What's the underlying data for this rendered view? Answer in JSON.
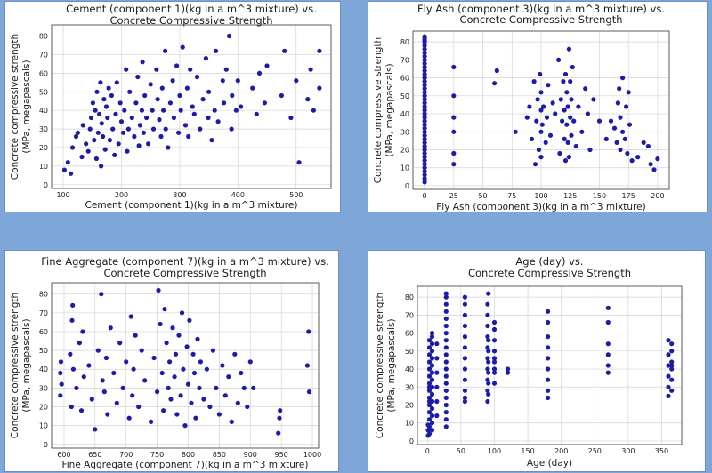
{
  "chart_data": [
    {
      "type": "scatter",
      "title_lines": [
        "Cement (component 1)(kg in a m^3 mixture) vs.",
        "Concrete Compressive Strength"
      ],
      "xlabel": "Cement (component 1)(kg in a m^3 mixture)",
      "ylabel_lines": [
        "Concrete compressive strength",
        "(MPa, megapascals)"
      ],
      "xlim": [
        80,
        560
      ],
      "ylim": [
        -2,
        86
      ],
      "xticks": [
        100,
        200,
        300,
        400,
        500
      ],
      "yticks": [
        0,
        10,
        20,
        30,
        40,
        50,
        60,
        70,
        80
      ],
      "grid": true,
      "x": [
        102,
        108,
        113,
        116,
        122,
        125,
        132,
        134,
        139,
        143,
        146,
        148,
        151,
        153,
        155,
        157,
        158,
        160,
        162,
        164,
        165,
        166,
        168,
        170,
        172,
        174,
        176,
        178,
        180,
        183,
        185,
        188,
        190,
        192,
        195,
        198,
        200,
        203,
        205,
        208,
        210,
        212,
        214,
        218,
        222,
        225,
        228,
        230,
        232,
        235,
        236,
        238,
        240,
        243,
        246,
        250,
        253,
        255,
        260,
        262,
        265,
        268,
        270,
        272,
        275,
        276,
        280,
        284,
        288,
        290,
        295,
        298,
        300,
        302,
        305,
        310,
        313,
        315,
        318,
        322,
        325,
        330,
        335,
        340,
        345,
        349,
        350,
        355,
        360,
        362,
        366,
        374,
        376,
        380,
        385,
        389,
        390,
        397,
        400,
        405,
        425,
        432,
        437,
        446,
        450,
        475,
        480,
        491,
        500,
        505,
        520,
        525,
        530,
        540,
        540
      ],
      "y": [
        8,
        12,
        6,
        20,
        26,
        28,
        15,
        32,
        22,
        18,
        30,
        36,
        44,
        24,
        40,
        14,
        50,
        28,
        38,
        55,
        10,
        33,
        26,
        46,
        19,
        42,
        36,
        52,
        24,
        48,
        30,
        16,
        38,
        55,
        22,
        44,
        34,
        28,
        40,
        62,
        18,
        30,
        50,
        36,
        26,
        44,
        58,
        21,
        32,
        40,
        66,
        28,
        48,
        36,
        22,
        54,
        40,
        30,
        62,
        46,
        35,
        26,
        52,
        40,
        72,
        30,
        20,
        44,
        56,
        36,
        64,
        28,
        48,
        40,
        74,
        32,
        52,
        26,
        62,
        42,
        38,
        58,
        30,
        46,
        68,
        36,
        50,
        24,
        40,
        72,
        34,
        56,
        44,
        62,
        80,
        30,
        48,
        40,
        56,
        42,
        52,
        38,
        60,
        44,
        64,
        48,
        72,
        36,
        56,
        12,
        46,
        62,
        40,
        72,
        52
      ]
    },
    {
      "type": "scatter",
      "title_lines": [
        "Fly Ash (component 3)(kg in a m^3 mixture) vs.",
        "Concrete Compressive Strength"
      ],
      "xlabel": "Fly Ash (component 3)(kg in a m^3 mixture)",
      "ylabel_lines": [
        "Concrete compressive strength",
        "(MPa, megapascals)"
      ],
      "xlim": [
        -10,
        210
      ],
      "ylim": [
        -2,
        86
      ],
      "xticks": [
        0,
        25,
        50,
        75,
        100,
        125,
        150,
        175,
        200
      ],
      "yticks": [
        0,
        10,
        20,
        30,
        40,
        50,
        60,
        70,
        80
      ],
      "grid": true,
      "x": [
        0,
        0,
        0,
        0,
        0,
        0,
        0,
        0,
        0,
        0,
        0,
        0,
        0,
        0,
        0,
        0,
        0,
        0,
        0,
        0,
        0,
        0,
        0,
        0,
        0,
        0,
        0,
        0,
        0,
        0,
        0,
        0,
        0,
        0,
        0,
        0,
        0,
        0,
        0,
        0,
        0,
        0,
        0,
        25,
        25,
        25,
        25,
        25,
        25,
        60,
        62,
        78,
        88,
        90,
        92,
        94,
        95,
        96,
        97,
        98,
        99,
        100,
        100,
        100,
        100,
        101,
        102,
        104,
        105,
        106,
        108,
        110,
        112,
        115,
        116,
        117,
        118,
        119,
        120,
        120,
        121,
        121,
        122,
        122,
        123,
        123,
        124,
        124,
        125,
        125,
        126,
        126,
        127,
        128,
        130,
        132,
        135,
        138,
        140,
        142,
        145,
        150,
        156,
        160,
        163,
        165,
        166,
        167,
        168,
        168,
        170,
        170,
        172,
        173,
        174,
        175,
        176,
        178,
        183,
        188,
        192,
        194,
        197,
        200
      ],
      "y": [
        2,
        4,
        6,
        8,
        10,
        12,
        14,
        16,
        18,
        20,
        22,
        24,
        26,
        28,
        30,
        32,
        34,
        36,
        38,
        40,
        42,
        44,
        46,
        48,
        50,
        52,
        54,
        56,
        58,
        60,
        62,
        64,
        66,
        68,
        70,
        72,
        74,
        76,
        78,
        80,
        81,
        82,
        83,
        12,
        18,
        30,
        38,
        50,
        66,
        57,
        64,
        30,
        38,
        44,
        26,
        58,
        12,
        36,
        48,
        20,
        62,
        30,
        42,
        52,
        16,
        34,
        44,
        24,
        38,
        56,
        28,
        46,
        40,
        70,
        18,
        48,
        36,
        58,
        26,
        42,
        62,
        14,
        34,
        52,
        24,
        44,
        76,
        16,
        38,
        58,
        28,
        48,
        66,
        36,
        22,
        44,
        30,
        54,
        40,
        20,
        48,
        36,
        26,
        36,
        32,
        24,
        46,
        54,
        20,
        38,
        30,
        60,
        26,
        44,
        18,
        52,
        34,
        14,
        16,
        24,
        22,
        12,
        9,
        15
      ]
    },
    {
      "type": "scatter",
      "title_lines": [
        "Fine Aggregate (component 7)(kg in a m^3 mixture) vs.",
        "Concrete Compressive Strength"
      ],
      "xlabel": "Fine Aggregate (component 7)(kg in a m^3 mixture)",
      "ylabel_lines": [
        "Concrete compressive strength",
        "(MPa, megapascals)"
      ],
      "xlim": [
        580,
        1010
      ],
      "ylim": [
        -2,
        86
      ],
      "xticks": [
        600,
        650,
        700,
        750,
        800,
        850,
        900,
        950,
        1000
      ],
      "yticks": [
        0,
        10,
        20,
        30,
        40,
        50,
        60,
        70,
        80
      ],
      "grid": true,
      "x": [
        594,
        594,
        595,
        596,
        610,
        612,
        613,
        614,
        615,
        620,
        625,
        628,
        630,
        632,
        640,
        645,
        650,
        655,
        660,
        662,
        665,
        668,
        670,
        675,
        680,
        685,
        690,
        695,
        700,
        705,
        708,
        710,
        712,
        715,
        720,
        725,
        730,
        740,
        745,
        750,
        752,
        755,
        758,
        760,
        762,
        765,
        768,
        770,
        772,
        775,
        778,
        780,
        782,
        785,
        788,
        790,
        792,
        795,
        798,
        800,
        802,
        805,
        808,
        810,
        812,
        815,
        818,
        820,
        825,
        830,
        835,
        840,
        845,
        850,
        855,
        860,
        865,
        870,
        875,
        880,
        885,
        890,
        895,
        900,
        905,
        945,
        947,
        948,
        992,
        994,
        995
      ],
      "y": [
        26,
        38,
        44,
        32,
        48,
        20,
        66,
        74,
        40,
        30,
        54,
        18,
        60,
        36,
        42,
        24,
        8,
        50,
        80,
        34,
        28,
        46,
        16,
        62,
        38,
        22,
        54,
        30,
        44,
        14,
        68,
        26,
        40,
        58,
        20,
        50,
        34,
        12,
        46,
        28,
        82,
        64,
        38,
        18,
        72,
        54,
        30,
        44,
        24,
        62,
        36,
        48,
        16,
        58,
        26,
        70,
        40,
        10,
        52,
        32,
        66,
        22,
        48,
        38,
        14,
        56,
        30,
        44,
        24,
        40,
        20,
        50,
        30,
        16,
        42,
        26,
        36,
        12,
        48,
        22,
        38,
        30,
        20,
        44,
        30,
        6,
        14,
        18,
        42,
        60,
        28
      ]
    },
    {
      "type": "scatter",
      "title_lines": [
        "Age (day) vs.",
        "Concrete Compressive Strength"
      ],
      "xlabel": "Age (day)",
      "ylabel_lines": [
        "Concrete compressive strength",
        "(MPa, megapascals)"
      ],
      "xlim": [
        -15,
        380
      ],
      "ylim": [
        -2,
        86
      ],
      "xticks": [
        0,
        50,
        100,
        150,
        200,
        250,
        300,
        350
      ],
      "yticks": [
        0,
        10,
        20,
        30,
        40,
        50,
        60,
        70,
        80
      ],
      "grid": true,
      "x": [
        1,
        1,
        1,
        3,
        3,
        3,
        3,
        3,
        3,
        3,
        3,
        3,
        3,
        3,
        3,
        3,
        3,
        3,
        3,
        7,
        7,
        7,
        7,
        7,
        7,
        7,
        7,
        7,
        7,
        7,
        7,
        7,
        7,
        7,
        14,
        14,
        14,
        14,
        14,
        14,
        28,
        28,
        28,
        28,
        28,
        28,
        28,
        28,
        28,
        28,
        28,
        28,
        28,
        28,
        28,
        28,
        28,
        28,
        28,
        28,
        56,
        56,
        56,
        56,
        56,
        56,
        56,
        56,
        56,
        56,
        56,
        56,
        90,
        90,
        90,
        90,
        90,
        90,
        90,
        90,
        90,
        90,
        91,
        91,
        91,
        91,
        91,
        91,
        91,
        100,
        100,
        100,
        100,
        100,
        100,
        100,
        100,
        100,
        120,
        120,
        180,
        180,
        180,
        180,
        180,
        180,
        180,
        180,
        180,
        270,
        270,
        270,
        270,
        270,
        270,
        360,
        360,
        360,
        360,
        360,
        360,
        365,
        365,
        365,
        365,
        365,
        365,
        365
      ],
      "y": [
        3,
        6,
        9,
        4,
        8,
        12,
        16,
        20,
        24,
        28,
        32,
        36,
        40,
        44,
        48,
        52,
        56,
        30,
        22,
        6,
        10,
        14,
        18,
        22,
        26,
        30,
        34,
        38,
        42,
        46,
        50,
        54,
        58,
        60,
        14,
        22,
        30,
        38,
        46,
        54,
        8,
        12,
        16,
        20,
        24,
        28,
        32,
        36,
        40,
        44,
        48,
        52,
        56,
        60,
        64,
        68,
        72,
        76,
        80,
        82,
        22,
        28,
        34,
        40,
        46,
        52,
        58,
        64,
        70,
        76,
        80,
        24,
        22,
        28,
        34,
        40,
        46,
        52,
        58,
        64,
        70,
        76,
        26,
        32,
        38,
        44,
        50,
        56,
        82,
        32,
        38,
        44,
        50,
        56,
        62,
        66,
        40,
        46,
        40,
        38,
        24,
        28,
        34,
        40,
        46,
        52,
        58,
        66,
        72,
        38,
        42,
        48,
        54,
        66,
        74,
        25,
        30,
        36,
        42,
        48,
        56,
        28,
        34,
        40,
        44,
        50,
        54,
        42
      ]
    }
  ]
}
